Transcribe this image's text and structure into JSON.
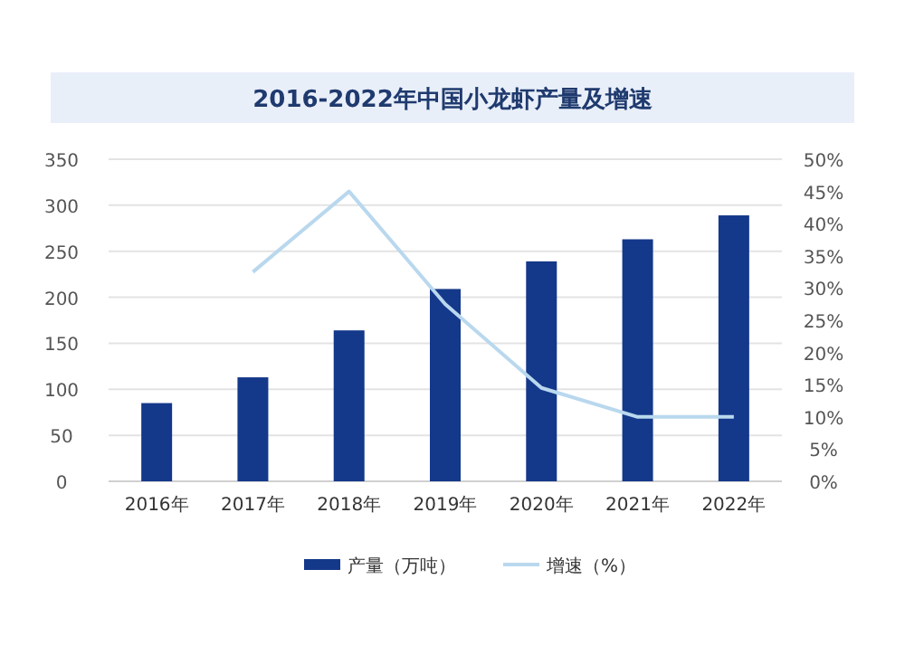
{
  "chart_data": {
    "type": "bar",
    "title": "2016-2022年中国小龙虾产量及增速",
    "categories": [
      "2016年",
      "2017年",
      "2018年",
      "2019年",
      "2020年",
      "2021年",
      "2022年"
    ],
    "series": [
      {
        "name": "产量（万吨）",
        "color": "#14388a",
        "values": [
          85,
          113,
          164,
          209,
          239,
          263,
          289
        ]
      },
      {
        "name": "增速（%）",
        "type": "line",
        "axis": "y2",
        "color": "#b9d8ee",
        "values": [
          null,
          32.5,
          45,
          27.5,
          14.5,
          10,
          10
        ]
      }
    ],
    "ylim": [
      0,
      350
    ],
    "yticks": [
      0,
      50,
      100,
      150,
      200,
      250,
      300,
      350
    ],
    "y2lim": [
      0,
      50
    ],
    "y2ticks": [
      {
        "value": 0,
        "label": "0%"
      },
      {
        "value": 5,
        "label": "5%"
      },
      {
        "value": 10,
        "label": "10%"
      },
      {
        "value": 15,
        "label": "15%"
      },
      {
        "value": 20,
        "label": "20%"
      },
      {
        "value": 25,
        "label": "25%"
      },
      {
        "value": 30,
        "label": "30%"
      },
      {
        "value": 35,
        "label": "35%"
      },
      {
        "value": 40,
        "label": "40%"
      },
      {
        "value": 45,
        "label": "45%"
      },
      {
        "value": 50,
        "label": "50%"
      }
    ],
    "grid": "y",
    "legend": "bottom"
  }
}
